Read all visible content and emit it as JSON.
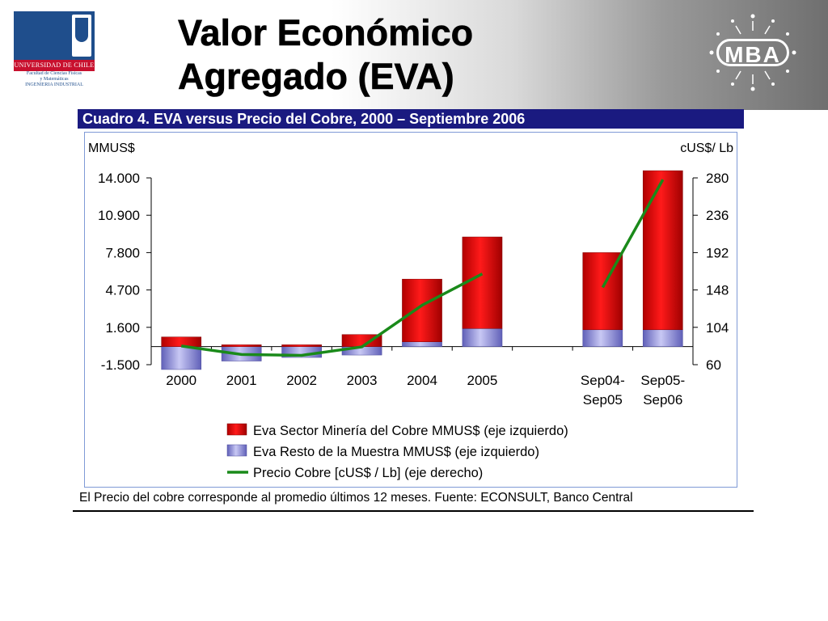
{
  "header": {
    "title_line1": "Valor Económico",
    "title_line2": "Agregado (EVA)",
    "left_logo": {
      "name": "UNIVERSIDAD DE CHILE",
      "faculty_line1": "Facultad de Ciencias Físicas",
      "faculty_line2": "y Matemáticas",
      "faculty_line3": "INGENIERIA INDUSTRIAL"
    },
    "right_logo": {
      "text": "MBA"
    }
  },
  "figure": {
    "title": "Cuadro 4. EVA versus Precio del Cobre, 2000 – Septiembre 2006",
    "source_note": "El Precio del cobre corresponde al promedio últimos 12 meses. Fuente: ECONSULT, Banco Central"
  },
  "chart_data": {
    "type": "bar",
    "stacked": true,
    "categories": [
      "2000",
      "2001",
      "2002",
      "2003",
      "2004",
      "2005",
      "",
      "Sep04-\nSep05",
      "Sep05-\nSep06"
    ],
    "series": [
      {
        "name": "Eva Sector Minería del Cobre MMUS$ (eje izquierdo)",
        "type": "bar",
        "axis": "left",
        "color": "#e60000",
        "values": [
          800,
          150,
          150,
          1000,
          5200,
          7600,
          null,
          6400,
          13200
        ]
      },
      {
        "name": "Eva Resto de la Muestra MMUS$ (eje izquierdo)",
        "type": "bar",
        "axis": "left",
        "color": "#8a8ad8",
        "values": [
          -1900,
          -1200,
          -900,
          -700,
          400,
          1500,
          null,
          1400,
          1400
        ]
      },
      {
        "name": "Precio Cobre [cUS$ / Lb]  (eje derecho)",
        "type": "line",
        "axis": "right",
        "color": "#1a8a1a",
        "values": [
          82,
          72,
          71,
          81,
          130,
          167,
          null,
          151,
          278
        ]
      }
    ],
    "left_axis": {
      "label": "MMUS$",
      "ticks": [
        "14.000",
        "10.900",
        "7.800",
        "4.700",
        "1.600",
        "-1.500"
      ],
      "min": -1500,
      "max": 14000
    },
    "right_axis": {
      "label": "cUS$/ Lb",
      "ticks": [
        "280",
        "236",
        "192",
        "148",
        "104",
        "60"
      ],
      "min": 60,
      "max": 280
    },
    "grid": false,
    "legend_position": "bottom"
  }
}
